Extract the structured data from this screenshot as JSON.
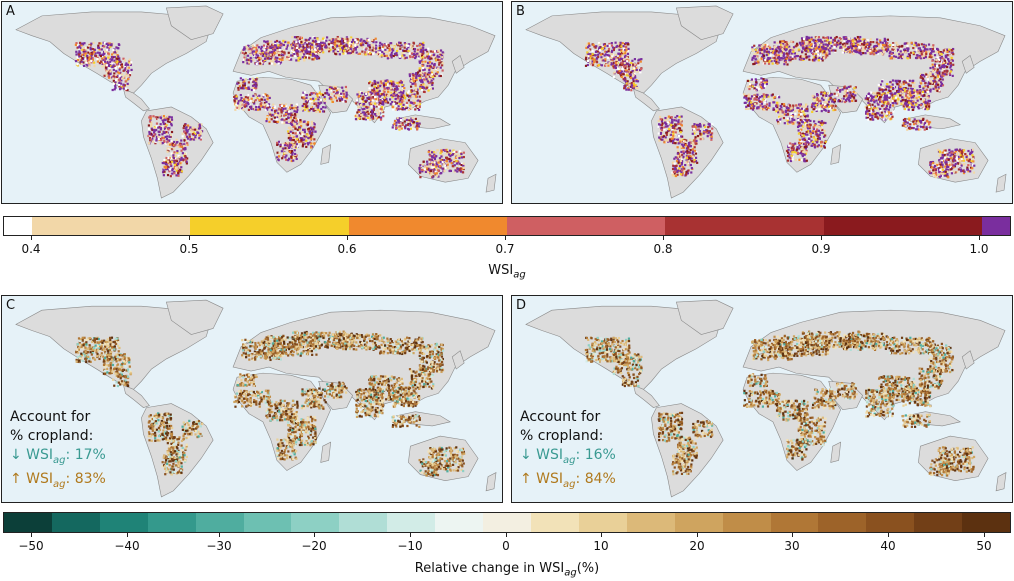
{
  "panels": {
    "a": {
      "label": "A"
    },
    "b": {
      "label": "B"
    },
    "c": {
      "label": "C",
      "note_title": "Account for",
      "note_sub": "% cropland:",
      "down_text": "↓ WSI",
      "down_sub": "ag",
      "down_value": ":  17%",
      "up_text": "↑ WSI",
      "up_sub": "ag",
      "up_value": ": 83%"
    },
    "d": {
      "label": "D",
      "note_title": "Account for",
      "note_sub": "% cropland:",
      "down_text": "↓ WSI",
      "down_sub": "ag",
      "down_value": ":  16%",
      "up_text": "↑ WSI",
      "up_sub": "ag",
      "up_value": ": 84%"
    }
  },
  "colorbar_top": {
    "colors": [
      "#ffffff",
      "#f2d7a8",
      "#f5cf2a",
      "#f0892e",
      "#cf5f62",
      "#a83232",
      "#8a1a1e",
      "#7a2e9e"
    ],
    "ticks": [
      "0.4",
      "0.5",
      "0.6",
      "0.7",
      "0.8",
      "0.9",
      "1.0"
    ],
    "title": "WSI",
    "title_sub": "ag"
  },
  "colorbar_bottom": {
    "colors": [
      "#0c3f39",
      "#14685f",
      "#1f8377",
      "#34998c",
      "#4fad9f",
      "#6dc0b2",
      "#8dd0c4",
      "#b0ded6",
      "#d2ece7",
      "#edf5f2",
      "#f3efe1",
      "#f2e2b8",
      "#e9d098",
      "#dcb979",
      "#cfa45f",
      "#c08d48",
      "#b07736",
      "#9d6329",
      "#8a511f",
      "#723f17",
      "#5c3110"
    ],
    "ticks": [
      "−50",
      "−40",
      "−30",
      "−20",
      "−10",
      "0",
      "10",
      "20",
      "30",
      "40",
      "50"
    ],
    "title": "Relative change in WSI",
    "title_sub": "ag",
    "title_suffix": "(%)"
  },
  "map_colors": {
    "ocean": "#e6f2f8",
    "land": "#dcdcdc",
    "border": "#8a8a8a"
  }
}
